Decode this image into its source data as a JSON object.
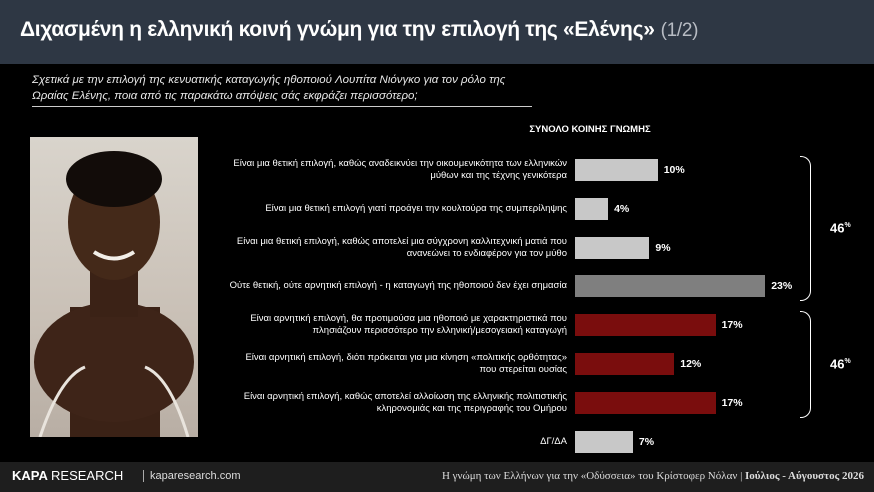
{
  "header": {
    "title": "Διχασμένη η ελληνική κοινή γνώμη για την επιλογή της «Ελένης»",
    "page": "(1/2)"
  },
  "question": "Σχετικά με την επιλογή της κενυατικής καταγωγής ηθοποιού Λουπίτα Νιόνγκο για τον ρόλο της Ωραίας Ελένης, ποια από τις παρακάτω απόψεις σάς εκφράζει περισσότερο;",
  "chart_data": {
    "type": "bar",
    "orientation": "horizontal",
    "title": "ΣΥΝΟΛΟ ΚΟΙΝΗΣ ΓΝΩΜΗΣ",
    "categories": [
      "Είναι μια θετική επιλογή, καθώς αναδεικνύει την οικουμενικότητα των ελληνικών μύθων και της τέχνης γενικότερα",
      "Είναι μια θετική επιλογή γιατί προάγει την κουλτούρα της συμπερίληψης",
      "Είναι μια θετική επιλογή, καθώς αποτελεί μια σύγχρονη καλλιτεχνική ματιά που ανανεώνει το ενδιαφέρον για τον μύθο",
      "Ούτε θετική, ούτε αρνητική επιλογή - η καταγωγή της ηθοποιού δεν έχει σημασία",
      "Είναι αρνητική επιλογή, θα προτιμούσα μια ηθοποιό με χαρακτηριστικά που πλησιάζουν περισσότερο την ελληνική/μεσογειακή καταγωγή",
      "Είναι αρνητική επιλογή, διότι πρόκειται για μια κίνηση «πολιτικής ορθότητας» που στερείται ουσίας",
      "Είναι αρνητική επιλογή, καθώς αποτελεί αλλοίωση της ελληνικής πολιτιστικής κληρονομιάς και της περιγραφής του Ομήρου",
      "ΔΓ/ΔΑ"
    ],
    "values": [
      10,
      4,
      9,
      23,
      17,
      12,
      17,
      7
    ],
    "value_labels": [
      "10%",
      "4%",
      "9%",
      "23%",
      "17%",
      "12%",
      "17%",
      "7%"
    ],
    "colors": [
      "#c8c8c8",
      "#c8c8c8",
      "#c8c8c8",
      "#7f7f7f",
      "#7a0d0d",
      "#7a0d0d",
      "#7a0d0d",
      "#c8c8c8"
    ],
    "groups": [
      {
        "total": "46",
        "unit": "%"
      },
      {
        "total": "46",
        "unit": "%"
      }
    ]
  },
  "footer": {
    "brand": "KAPA",
    "brand2": "RESEARCH",
    "site": "kaparesearch.com",
    "note": "Η γνώμη των Ελλήνων για την «Οδύσσεια» του Κρίστοφερ Νόλαν |",
    "date": "Ιούλιος - Αύγουστος 2026"
  }
}
